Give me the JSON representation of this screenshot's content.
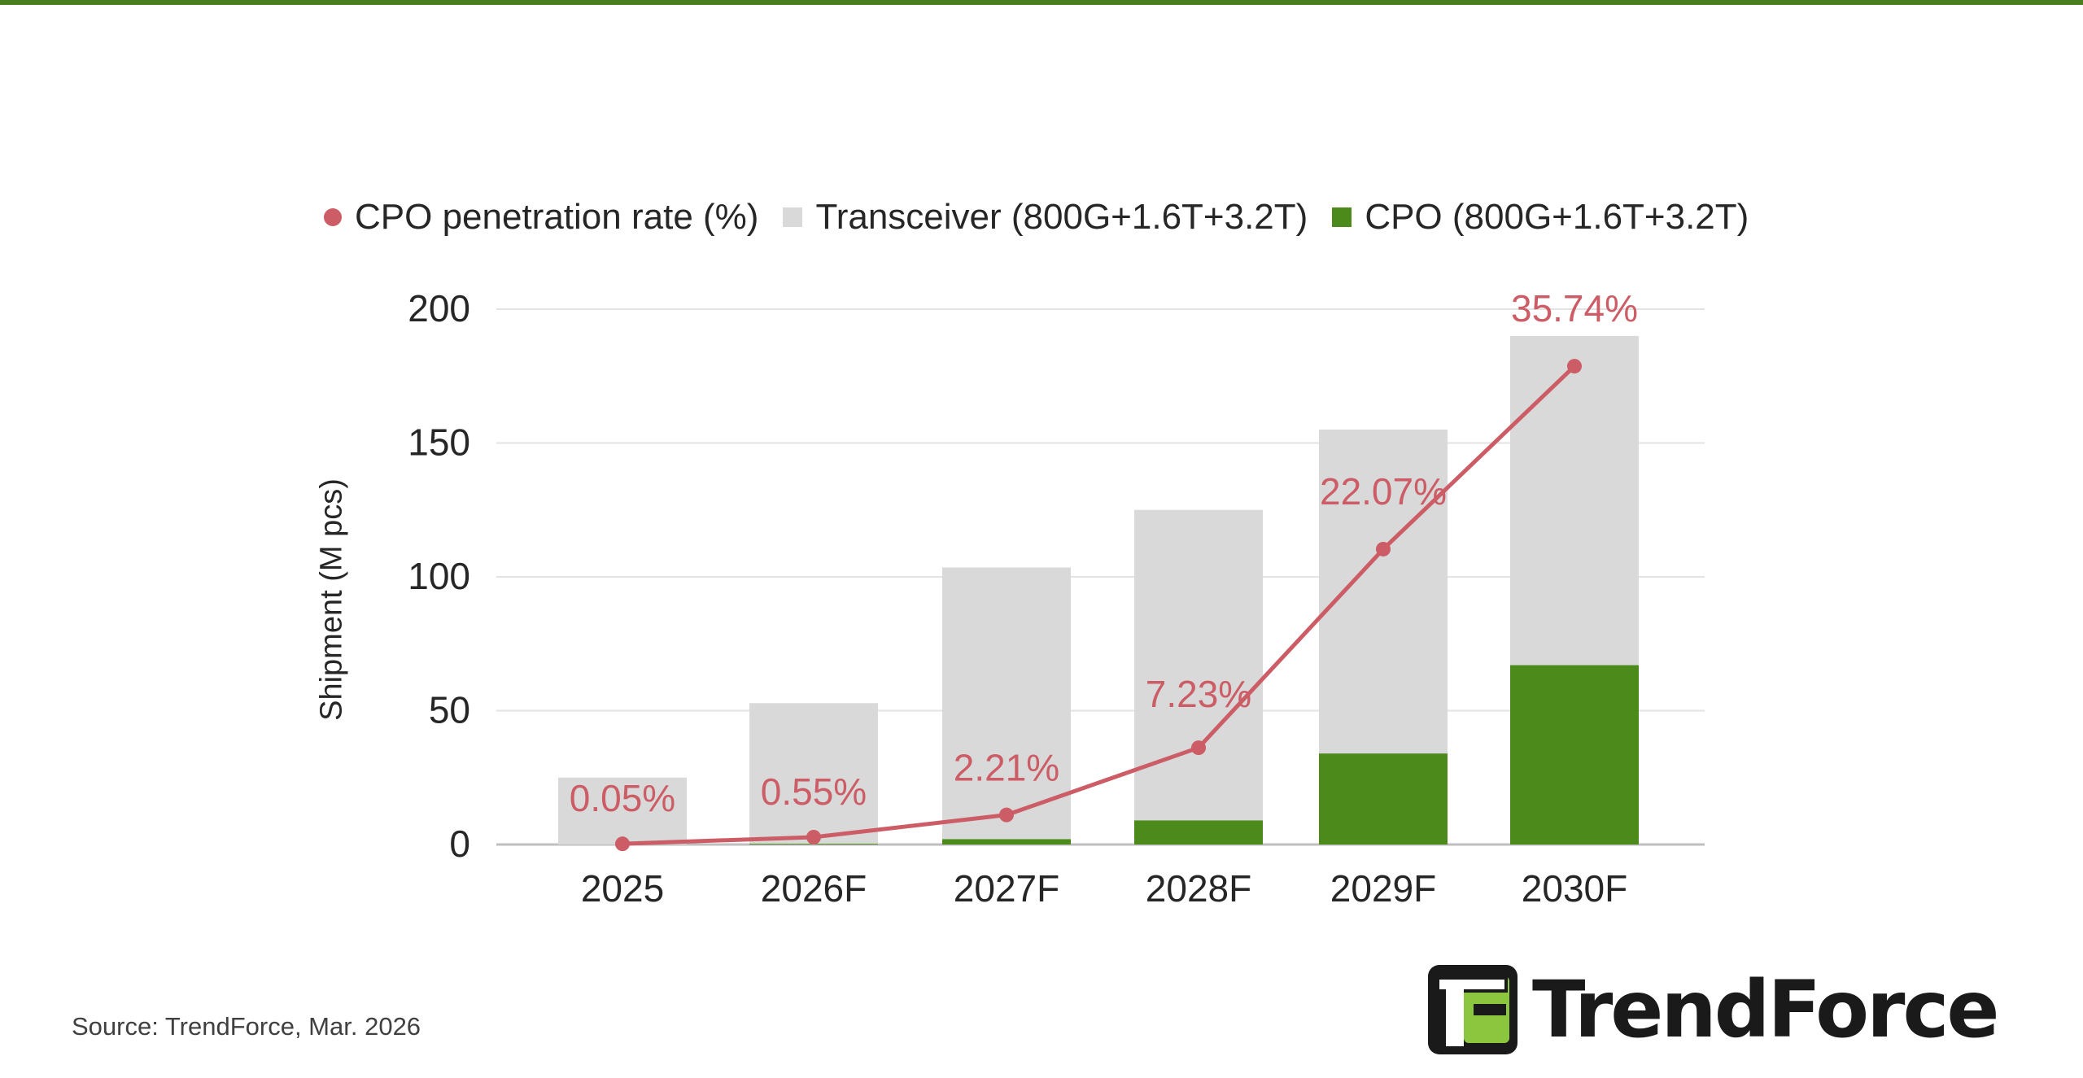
{
  "chart_data": {
    "type": "bar",
    "stacked": true,
    "categories": [
      "2025",
      "2026F",
      "2027F",
      "2028F",
      "2029F",
      "2030F"
    ],
    "series": [
      {
        "name": "Transceiver (800G+1.6T+3.2T)",
        "values": [
          25,
          52.5,
          101.5,
          116,
          121,
          123
        ],
        "color": "#d9d9d9"
      },
      {
        "name": "CPO (800G+1.6T+3.2T)",
        "values": [
          0.0,
          0.3,
          2,
          9,
          34,
          67
        ],
        "color": "#4d8a1c"
      }
    ],
    "line_series": {
      "name": "CPO penetration rate (%)",
      "values": [
        0.05,
        0.55,
        2.21,
        7.23,
        22.07,
        35.74
      ],
      "labels": [
        "0.05%",
        "0.55%",
        "2.21%",
        "7.23%",
        "22.07%",
        "35.74%"
      ],
      "color": "#cc5c65"
    },
    "ylabel": "Shipment (M pcs)",
    "ylim": [
      0,
      200
    ],
    "yticks": [
      0,
      50,
      100,
      150,
      200
    ],
    "grid": true,
    "legend_position": "top"
  },
  "legend": [
    {
      "label": "CPO penetration rate (%)",
      "color": "#cc5c65",
      "shape": "dot"
    },
    {
      "label": "Transceiver (800G+1.6T+3.2T)",
      "color": "#d9d9d9",
      "shape": "square"
    },
    {
      "label": "CPO (800G+1.6T+3.2T)",
      "color": "#4d8a1c",
      "shape": "square"
    }
  ],
  "source": "Source: TrendForce, Mar. 2026",
  "brand": {
    "name": "TrendForce",
    "accent": "#4a7f1f"
  }
}
